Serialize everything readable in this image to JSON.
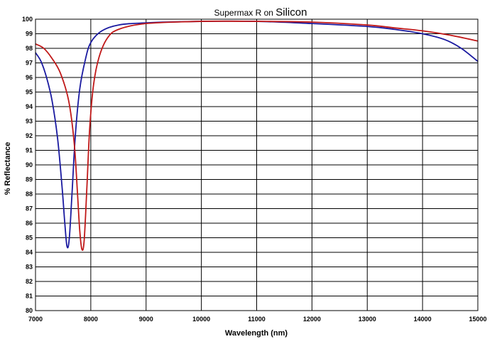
{
  "chart_data": {
    "type": "line",
    "title_prefix": "Supermax R on ",
    "title_suffix": "Silicon",
    "xlabel": "Wavelength (nm)",
    "ylabel": "% Reflectance",
    "xlim": [
      7000,
      15000
    ],
    "ylim": [
      80,
      100
    ],
    "x_ticks": [
      7000,
      8000,
      9000,
      10000,
      11000,
      12000,
      13000,
      14000,
      15000
    ],
    "y_ticks": [
      80,
      81,
      82,
      83,
      84,
      85,
      86,
      87,
      88,
      89,
      90,
      91,
      92,
      93,
      94,
      95,
      96,
      97,
      98,
      99,
      100
    ],
    "grid": true,
    "series": [
      {
        "color": "#1a1aa0",
        "points": [
          [
            7000,
            97.7
          ],
          [
            7100,
            97.1
          ],
          [
            7200,
            96.0
          ],
          [
            7300,
            94.4
          ],
          [
            7400,
            91.8
          ],
          [
            7480,
            88.5
          ],
          [
            7530,
            86.0
          ],
          [
            7570,
            84.4
          ],
          [
            7610,
            84.9
          ],
          [
            7660,
            88.0
          ],
          [
            7720,
            92.0
          ],
          [
            7800,
            95.2
          ],
          [
            7900,
            97.2
          ],
          [
            8000,
            98.4
          ],
          [
            8200,
            99.2
          ],
          [
            8500,
            99.6
          ],
          [
            9000,
            99.75
          ],
          [
            10000,
            99.85
          ],
          [
            11000,
            99.85
          ],
          [
            12000,
            99.7
          ],
          [
            13000,
            99.5
          ],
          [
            13500,
            99.3
          ],
          [
            14000,
            99.0
          ],
          [
            14400,
            98.6
          ],
          [
            14700,
            98.0
          ],
          [
            15000,
            97.1
          ]
        ]
      },
      {
        "color": "#c01818",
        "points": [
          [
            7000,
            98.3
          ],
          [
            7150,
            98.0
          ],
          [
            7300,
            97.3
          ],
          [
            7450,
            96.3
          ],
          [
            7600,
            94.4
          ],
          [
            7700,
            91.5
          ],
          [
            7760,
            88.0
          ],
          [
            7800,
            85.5
          ],
          [
            7840,
            84.2
          ],
          [
            7880,
            84.8
          ],
          [
            7930,
            88.5
          ],
          [
            7980,
            92.5
          ],
          [
            8050,
            95.5
          ],
          [
            8150,
            97.4
          ],
          [
            8300,
            98.7
          ],
          [
            8500,
            99.3
          ],
          [
            9000,
            99.7
          ],
          [
            10000,
            99.85
          ],
          [
            11000,
            99.85
          ],
          [
            12000,
            99.8
          ],
          [
            13000,
            99.6
          ],
          [
            13500,
            99.4
          ],
          [
            14000,
            99.2
          ],
          [
            14500,
            98.9
          ],
          [
            15000,
            98.5
          ]
        ]
      }
    ]
  }
}
